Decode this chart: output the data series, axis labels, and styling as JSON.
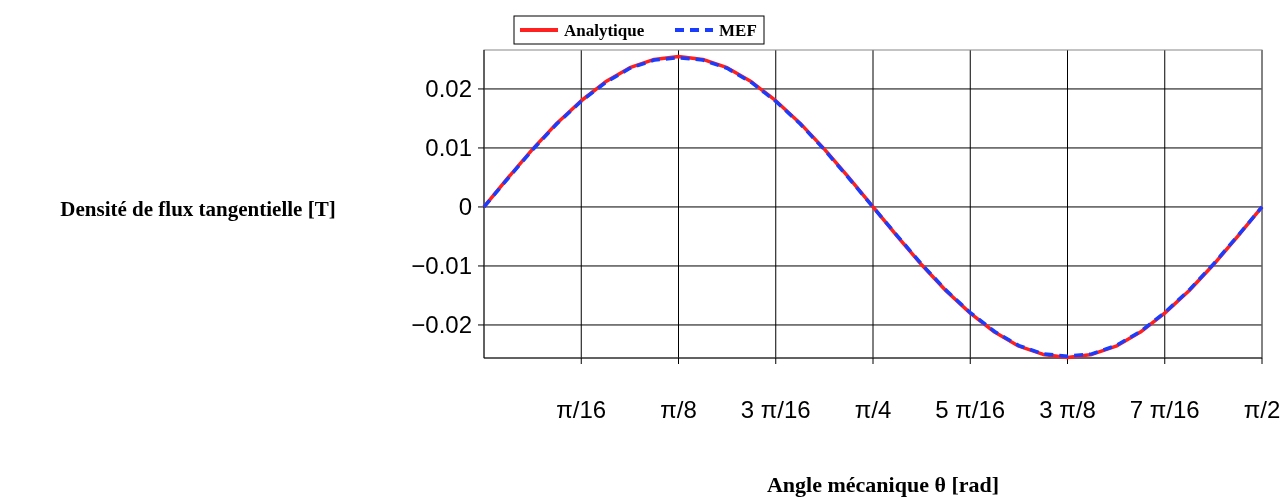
{
  "chart_data": {
    "type": "line",
    "xlabel": "Angle mécanique θ [rad]",
    "ylabel": "Densité de flux tangentielle [T]",
    "x": [
      0,
      0.0491,
      0.0982,
      0.1473,
      0.1963,
      0.2454,
      0.2945,
      0.3436,
      0.3927,
      0.4418,
      0.4909,
      0.54,
      0.589,
      0.6381,
      0.6872,
      0.7363,
      0.7854,
      0.8345,
      0.8836,
      0.9327,
      0.9817,
      1.0308,
      1.0799,
      1.129,
      1.1781,
      1.2272,
      1.2763,
      1.3254,
      1.3744,
      1.4235,
      1.4726,
      1.5217,
      1.5708
    ],
    "series": [
      {
        "name": "Analytique",
        "color": "#ff2020",
        "line_style": "solid",
        "values": [
          0,
          0.005,
          0.0098,
          0.0142,
          0.018,
          0.0212,
          0.0236,
          0.025,
          0.0255,
          0.025,
          0.0236,
          0.0212,
          0.018,
          0.0142,
          0.0098,
          0.005,
          0,
          -0.005,
          -0.0098,
          -0.0142,
          -0.018,
          -0.0212,
          -0.0236,
          -0.025,
          -0.0255,
          -0.025,
          -0.0236,
          -0.0212,
          -0.018,
          -0.0142,
          -0.0098,
          -0.005,
          0
        ]
      },
      {
        "name": "MEF",
        "color": "#1a3cff",
        "line_style": "dashed",
        "values": [
          0,
          0.0049,
          0.0097,
          0.0141,
          0.0179,
          0.0211,
          0.0235,
          0.0249,
          0.0253,
          0.0249,
          0.0235,
          0.0211,
          0.0179,
          0.0141,
          0.0097,
          0.0049,
          0,
          -0.0049,
          -0.0097,
          -0.0141,
          -0.0179,
          -0.0211,
          -0.0235,
          -0.0249,
          -0.0253,
          -0.0249,
          -0.0235,
          -0.0211,
          -0.0179,
          -0.0141,
          -0.0097,
          -0.0049,
          0
        ]
      }
    ],
    "xlim": [
      0,
      1.5708
    ],
    "ylim": [
      -0.0256,
      0.0266
    ],
    "xticks": [
      {
        "value": 0.19635,
        "label": "π/16"
      },
      {
        "value": 0.3927,
        "label": "π/8"
      },
      {
        "value": 0.58905,
        "label": "3 π/16"
      },
      {
        "value": 0.7854,
        "label": "π/4"
      },
      {
        "value": 0.98175,
        "label": "5 π/16"
      },
      {
        "value": 1.1781,
        "label": "3 π/8"
      },
      {
        "value": 1.37445,
        "label": "7 π/16"
      },
      {
        "value": 1.5708,
        "label": "π/2"
      }
    ],
    "yticks": [
      {
        "value": -0.02,
        "label": "−0.02"
      },
      {
        "value": -0.01,
        "label": "−0.01"
      },
      {
        "value": 0,
        "label": "0"
      },
      {
        "value": 0.01,
        "label": "0.01"
      },
      {
        "value": 0.02,
        "label": "0.02"
      }
    ],
    "grid": true,
    "legend": "top left"
  }
}
